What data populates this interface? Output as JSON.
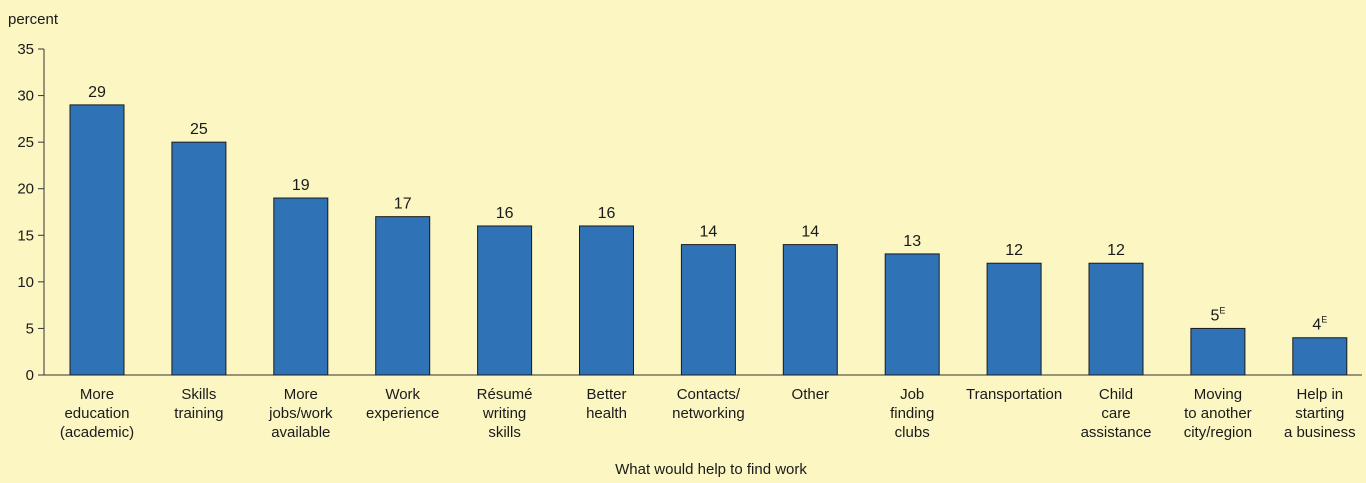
{
  "chart_data": {
    "type": "bar",
    "ylabel": "percent",
    "xlabel": "What would help to find work",
    "ylim": [
      0,
      35
    ],
    "yticks": [
      0,
      5,
      10,
      15,
      20,
      25,
      30,
      35
    ],
    "grid": false,
    "bar_color": "#2f72b5",
    "categories": [
      [
        "More",
        "education",
        "(academic)"
      ],
      [
        "Skills",
        "training"
      ],
      [
        "More",
        "jobs/work",
        "available"
      ],
      [
        "Work",
        "experience"
      ],
      [
        "Résumé",
        "writing",
        "skills"
      ],
      [
        "Better",
        "health"
      ],
      [
        "Contacts/",
        "networking"
      ],
      [
        "Other"
      ],
      [
        "Job",
        "finding",
        "clubs"
      ],
      [
        "Transportation"
      ],
      [
        "Child",
        "care",
        "assistance"
      ],
      [
        "Moving",
        "to another",
        "city/region"
      ],
      [
        "Help in",
        "starting",
        "a business"
      ]
    ],
    "values": [
      29,
      25,
      19,
      17,
      16,
      16,
      14,
      14,
      13,
      12,
      12,
      5,
      4
    ],
    "value_flags": [
      "",
      "",
      "",
      "",
      "",
      "",
      "",
      "",
      "",
      "",
      "",
      "E",
      "E"
    ]
  }
}
